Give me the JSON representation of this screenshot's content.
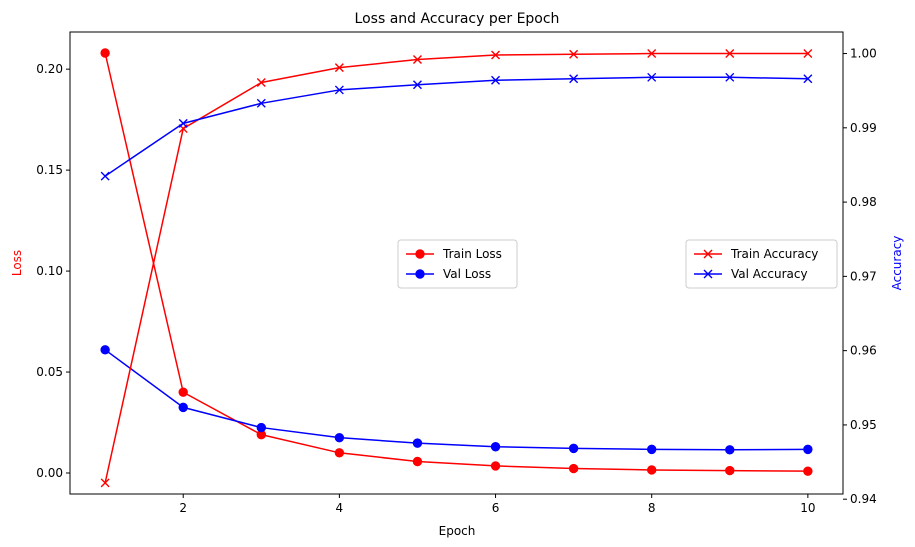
{
  "chart_data": {
    "type": "line",
    "title": "Loss and Accuracy per Epoch",
    "xlabel": "Epoch",
    "ylabel_left": "Loss",
    "ylabel_right": "Accuracy",
    "x": [
      1,
      2,
      3,
      4,
      5,
      6,
      7,
      8,
      9,
      10
    ],
    "xlim": [
      0.55,
      10.45
    ],
    "xticks": [
      2,
      4,
      6,
      8,
      10
    ],
    "xtick_labels": [
      "2",
      "4",
      "6",
      "8",
      "10"
    ],
    "ylim_left": [
      -0.0104,
      0.2184
    ],
    "yticks_left": [
      0.0,
      0.05,
      0.1,
      0.15,
      0.2
    ],
    "ytick_labels_left": [
      "0.00",
      "0.05",
      "0.10",
      "0.15",
      "0.20"
    ],
    "ylim_right": [
      0.9407,
      1.0029
    ],
    "yticks_right": [
      0.94,
      0.95,
      0.96,
      0.97,
      0.98,
      0.99,
      1.0
    ],
    "ytick_labels_right": [
      "0.94",
      "0.95",
      "0.96",
      "0.97",
      "0.98",
      "0.99",
      "1.00"
    ],
    "grid": false,
    "colors": {
      "train": "#ff0000",
      "val": "#0000ff",
      "left_label": "#ff0000",
      "right_label": "#0000ff"
    },
    "series_left": [
      {
        "name": "Train Loss",
        "color": "#ff0000",
        "marker": "o",
        "values": [
          0.208,
          0.04,
          0.019,
          0.01,
          0.0057,
          0.0035,
          0.0022,
          0.0015,
          0.0012,
          0.0009
        ]
      },
      {
        "name": "Val Loss",
        "color": "#0000ff",
        "marker": "o",
        "values": [
          0.061,
          0.0325,
          0.0225,
          0.0175,
          0.0148,
          0.013,
          0.0122,
          0.0117,
          0.0115,
          0.0117
        ]
      }
    ],
    "series_right": [
      {
        "name": "Train Accuracy",
        "color": "#ff0000",
        "marker": "x",
        "values": [
          0.9422,
          0.9899,
          0.9961,
          0.9981,
          0.9992,
          0.9998,
          0.9999,
          1.0,
          1.0,
          1.0
        ]
      },
      {
        "name": "Val Accuracy",
        "color": "#0000ff",
        "marker": "x",
        "values": [
          0.9835,
          0.9906,
          0.9933,
          0.9951,
          0.9958,
          0.9964,
          0.9966,
          0.9968,
          0.9968,
          0.9966
        ]
      }
    ],
    "legend_left": {
      "placement": "center",
      "items": [
        "Train Loss",
        "Val Loss"
      ]
    },
    "legend_right": {
      "placement": "center-right",
      "items": [
        "Train Accuracy",
        "Val Accuracy"
      ]
    }
  }
}
